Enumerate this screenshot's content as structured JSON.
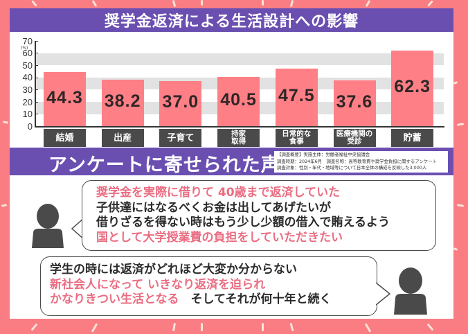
{
  "title": "奨学金返済による生活設計への影響",
  "colors": {
    "background": "#f97d83",
    "header_purple": "#6a4fb1",
    "bar_pink": "#ff7f86",
    "label_dark": "#4a4a4a",
    "highlight_text": "#ea6d82",
    "grid_band": "#e2e2e2"
  },
  "chart_data": {
    "type": "bar",
    "title": "奨学金返済による生活設計への影響",
    "xlabel": "",
    "ylabel": "(%)",
    "ylim": [
      0,
      70
    ],
    "yticks": [
      0,
      10,
      20,
      30,
      40,
      50,
      60,
      70
    ],
    "grid": "alternating horizontal bands",
    "categories": [
      "結婚",
      "出産",
      "子育て",
      "持家取得",
      "日常的な食事",
      "医療機関の受診",
      "貯蓄"
    ],
    "category_display": [
      "結婚",
      "出産",
      "子育て",
      "持家\n取得",
      "日常的な\n食事",
      "医療機関の\n受診",
      "貯蓄"
    ],
    "values": [
      44.3,
      38.2,
      37.0,
      40.5,
      47.5,
      37.6,
      62.3
    ],
    "value_labels": [
      "44.3",
      "38.2",
      "37.0",
      "40.5",
      "47.5",
      "37.6",
      "62.3"
    ]
  },
  "section": {
    "title": "アンケートに寄せられた声",
    "survey_info": [
      "【調査概要】実施主体：労働者福祉中央協議会",
      "調査時期：2024年6月　調査名称：高等教育費や奨学金負担に関するアンケート",
      "調査対象：性別・年代・地域等について日本全体の構成を反映した3,000人"
    ]
  },
  "quotes": [
    {
      "avatar": "person-icon",
      "lines": [
        {
          "segments": [
            {
              "text": "奨学金を実際に借りて 40歳まで返済していた",
              "highlight": true
            }
          ]
        },
        {
          "segments": [
            {
              "text": "子供達にはなるべくお金は出してあげたいが",
              "highlight": false
            }
          ]
        },
        {
          "segments": [
            {
              "text": "借りざるを得ない時はもう少し少額の借入で賄えるよう",
              "highlight": false
            }
          ]
        },
        {
          "segments": [
            {
              "text": "国として大学授業費の負担をしていただきたい",
              "highlight": true
            }
          ]
        }
      ]
    },
    {
      "avatar": "person-icon",
      "lines": [
        {
          "segments": [
            {
              "text": "学生の時には返済がどれほど大変か分からない",
              "highlight": false
            }
          ]
        },
        {
          "segments": [
            {
              "text": "新社会人になって いきなり返済を迫られ",
              "highlight": true
            }
          ]
        },
        {
          "segments": [
            {
              "text": "かなりきつい生活となる",
              "highlight": true
            },
            {
              "text": "　そしてそれが何十年と続く",
              "highlight": false
            }
          ]
        }
      ]
    }
  ]
}
